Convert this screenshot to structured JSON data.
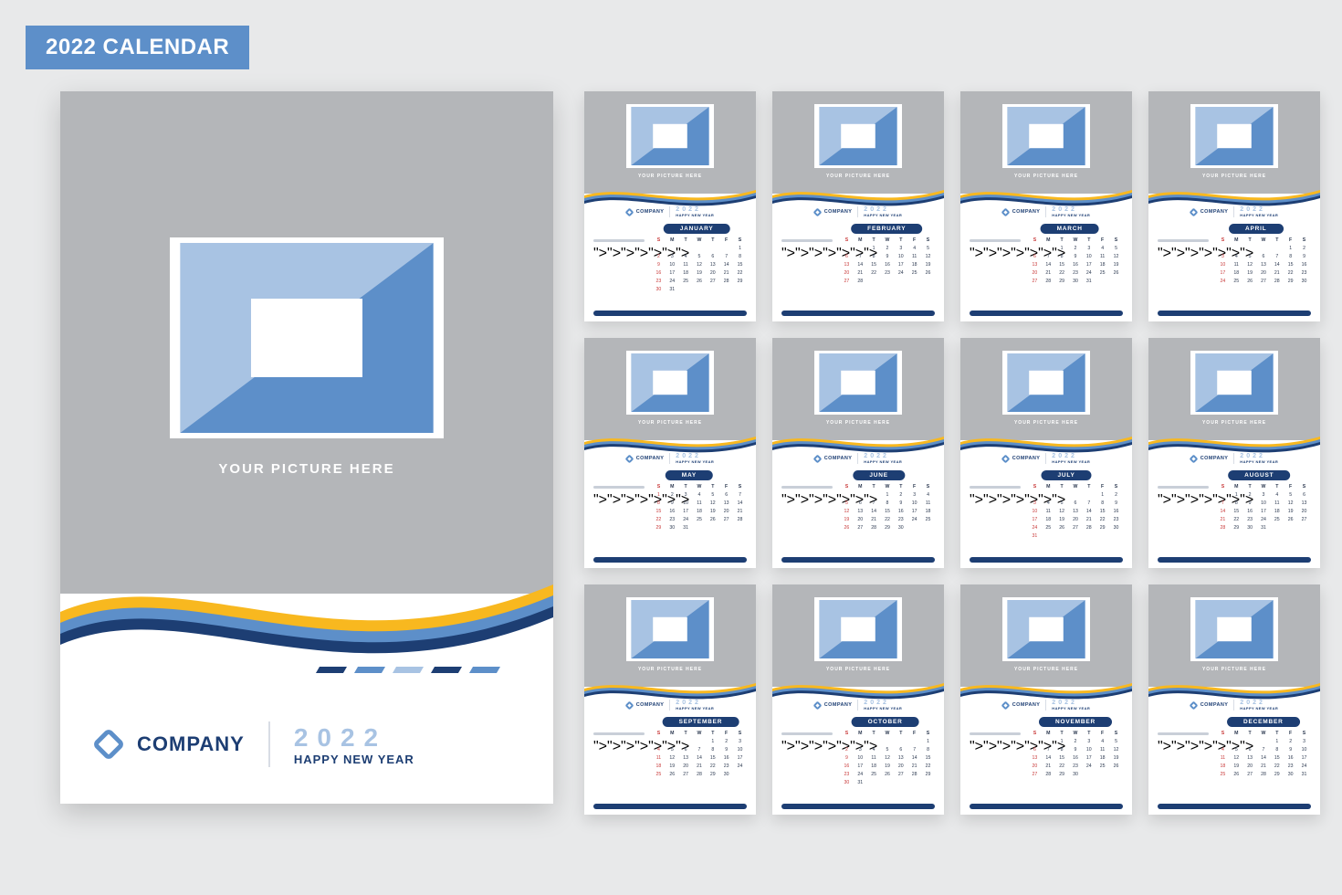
{
  "colors": {
    "background": "#e8e9ea",
    "primary_blue": "#5d8fc9",
    "dark_navy": "#1d3e73",
    "yellow": "#f8b81f",
    "light_blue": "#a8c3e3",
    "grey_pic": "#b4b6b9",
    "sunday_red": "#c93a3a",
    "text_dark": "#2e3b52",
    "line_grey": "#c9cfd8"
  },
  "title_bar": "2022 CALENDAR",
  "cover": {
    "your_picture": "YOUR PICTURE HERE",
    "company": "COMPANY",
    "year": "2022",
    "happy_new_year": "HAPPY NEW YEAR",
    "slash_colors": [
      "#1d3e73",
      "#5d8fc9",
      "#a8c3e3",
      "#1d3e73",
      "#5d8fc9"
    ]
  },
  "day_headers": [
    "S",
    "M",
    "T",
    "W",
    "T",
    "F",
    "S"
  ],
  "months": [
    {
      "name": "JANUARY",
      "start": 6,
      "days": 31
    },
    {
      "name": "FEBRUARY",
      "start": 2,
      "days": 28
    },
    {
      "name": "MARCH",
      "start": 2,
      "days": 31
    },
    {
      "name": "APRIL",
      "start": 5,
      "days": 30
    },
    {
      "name": "MAY",
      "start": 0,
      "days": 31
    },
    {
      "name": "JUNE",
      "start": 3,
      "days": 30
    },
    {
      "name": "JULY",
      "start": 5,
      "days": 31
    },
    {
      "name": "AUGUST",
      "start": 1,
      "days": 31
    },
    {
      "name": "SEPTEMBER",
      "start": 4,
      "days": 30
    },
    {
      "name": "OCTOBER",
      "start": 6,
      "days": 31
    },
    {
      "name": "NOVEMBER",
      "start": 2,
      "days": 30
    },
    {
      "name": "DECEMBER",
      "start": 4,
      "days": 31
    }
  ]
}
